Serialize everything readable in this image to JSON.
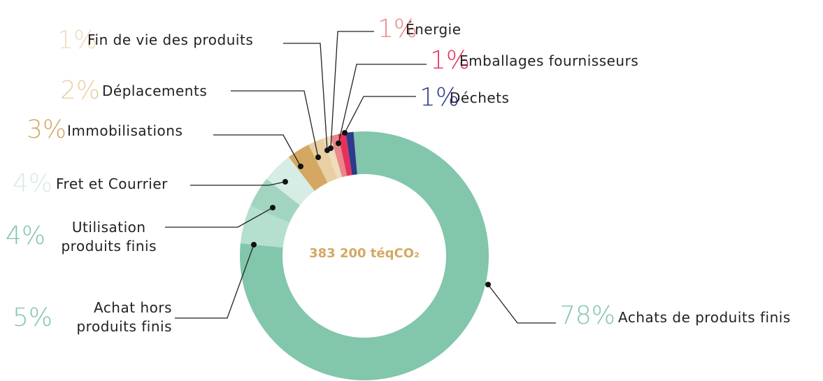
{
  "chart_data": {
    "type": "donut",
    "center_label": "383 200 téqCO₂",
    "categories": [
      "Achats de produits finis",
      "Achat hors\nproduits finis",
      "Utilisation\nproduits finis",
      "Fret et Courrier",
      "Immobilisations",
      "Déplacements",
      "Fin de vie des produits",
      "Énergie",
      "Emballages fournisseurs",
      "Déchets"
    ],
    "values": [
      78,
      5,
      4,
      4,
      3,
      2,
      1,
      1,
      1,
      1
    ],
    "value_labels": [
      "78%",
      "5%",
      "4%",
      "4%",
      "3%",
      "2%",
      "1%",
      "1%",
      "1%",
      "1%"
    ],
    "colors": [
      "#82c6ab",
      "#b5dfce",
      "#a2d5c0",
      "#d5ede4",
      "#d4a862",
      "#e8cfa4",
      "#eedcbc",
      "#e8888a",
      "#e5325a",
      "#2e3a8c"
    ]
  }
}
